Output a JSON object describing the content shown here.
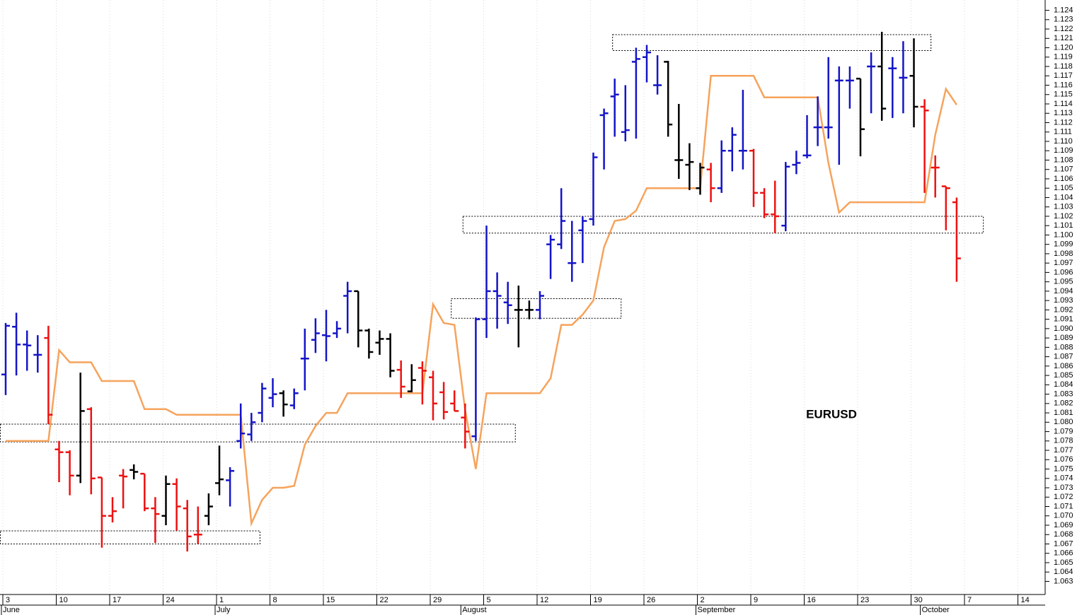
{
  "chart_data": {
    "type": "ohlc",
    "title": "EURUSD",
    "categories": [
      "3",
      null,
      null,
      null,
      null,
      "10",
      null,
      null,
      null,
      null,
      "17",
      null,
      null,
      null,
      null,
      "24",
      null,
      null,
      null,
      null,
      "1",
      null,
      null,
      null,
      null,
      "8",
      null,
      null,
      null,
      null,
      "15",
      null,
      null,
      null,
      null,
      "22",
      null,
      null,
      null,
      null,
      "29",
      null,
      null,
      null,
      null,
      "5",
      null,
      null,
      null,
      null,
      "12",
      null,
      null,
      null,
      null,
      "19",
      null,
      null,
      null,
      null,
      "26",
      null,
      null,
      null,
      null,
      "2",
      null,
      null,
      null,
      null,
      "9",
      null,
      null,
      null,
      null,
      "16",
      null,
      null,
      null,
      null,
      "23",
      null,
      null,
      null,
      null,
      "30",
      null,
      null,
      null,
      null,
      "7",
      null,
      null,
      null,
      null,
      "14",
      null,
      null
    ],
    "months": [
      "June",
      "July",
      "August",
      "September",
      "October"
    ],
    "open": [
      1.0851,
      1.0902,
      1.0883,
      1.0872,
      1.089,
      1.0771,
      1.0768,
      1.0743,
      1.0814,
      1.0741,
      1.07,
      1.0743,
      1.0749,
      1.0745,
      1.0708,
      1.07,
      1.0734,
      1.0708,
      1.068,
      1.07,
      1.0735,
      1.0738,
      1.078,
      1.0787,
      1.081,
      1.0826,
      1.0831,
      1.0818,
      1.0868,
      1.0888,
      1.0893,
      1.0895,
      1.0935,
      1.094,
      1.0898,
      1.0885,
      1.0889,
      1.0856,
      1.0833,
      1.0858,
      1.0848,
      1.0832,
      1.082,
      1.0805,
      1.0785,
      1.091,
      1.094,
      1.0928,
      1.092,
      1.092,
      1.092,
      1.099,
      1.099,
      1.097,
      1.1005,
      1.1017,
      1.1128,
      1.1148,
      1.111,
      1.1185,
      1.119,
      1.116,
      1.1185,
      1.108,
      1.1075,
      1.105,
      1.107,
      1.105,
      1.109,
      1.109,
      1.109,
      1.1045,
      1.1022,
      1.101,
      1.1075,
      1.1085,
      1.1115,
      1.1115,
      1.1165,
      1.1165,
      1.1167,
      1.118,
      1.118,
      1.1178,
      1.1168,
      1.117,
      1.1137,
      1.1072,
      1.1052,
      1.1035,
      null,
      null,
      null,
      null,
      null,
      null,
      null,
      null
    ],
    "high": [
      1.0906,
      1.0917,
      1.0898,
      1.0893,
      1.0903,
      1.078,
      1.077,
      1.0853,
      1.0816,
      1.0741,
      1.072,
      1.075,
      1.0755,
      1.0745,
      1.072,
      1.0743,
      1.074,
      1.0717,
      1.071,
      1.0724,
      1.0775,
      1.0752,
      1.082,
      1.081,
      1.0842,
      1.0847,
      1.0834,
      1.0836,
      1.09,
      1.0911,
      1.092,
      1.0908,
      1.095,
      1.094,
      1.09,
      1.0898,
      1.0895,
      1.0866,
      1.0862,
      1.0865,
      1.0855,
      1.0843,
      1.0834,
      1.082,
      1.0912,
      1.101,
      1.096,
      1.095,
      1.0946,
      1.093,
      1.094,
      1.1,
      1.105,
      1.1015,
      1.102,
      1.1088,
      1.1135,
      1.1167,
      1.116,
      1.12,
      1.1203,
      1.1192,
      1.1186,
      1.114,
      1.1098,
      1.1077,
      1.1077,
      1.1101,
      1.1115,
      1.1155,
      1.1092,
      1.105,
      1.1058,
      1.1078,
      1.109,
      1.1128,
      1.1148,
      1.119,
      1.118,
      1.118,
      1.1167,
      1.1195,
      1.1217,
      1.119,
      1.1207,
      1.121,
      1.1145,
      1.1085,
      1.1052,
      1.104,
      null,
      null,
      null,
      null,
      null,
      null,
      null,
      null
    ],
    "low": [
      1.0829,
      1.085,
      1.0855,
      1.0853,
      1.0798,
      1.0736,
      1.0722,
      1.0735,
      1.0723,
      1.0666,
      1.0693,
      1.0708,
      1.0739,
      1.0705,
      1.0671,
      1.069,
      1.0684,
      1.0662,
      1.067,
      1.069,
      1.0722,
      1.071,
      1.0772,
      1.078,
      1.08,
      1.0816,
      1.0806,
      1.0814,
      1.0834,
      1.0874,
      1.0865,
      1.089,
      1.0895,
      1.088,
      1.0868,
      1.0872,
      1.0848,
      1.0826,
      1.0832,
      1.0819,
      1.0802,
      1.0803,
      1.0812,
      1.0772,
      1.078,
      1.089,
      1.09,
      1.0905,
      1.088,
      1.091,
      1.091,
      1.0953,
      1.0985,
      1.095,
      1.097,
      1.101,
      1.107,
      1.1105,
      1.11,
      1.1103,
      1.1163,
      1.115,
      1.1105,
      1.106,
      1.1048,
      1.1043,
      1.1035,
      1.1045,
      1.1068,
      1.107,
      1.103,
      1.1018,
      1.1002,
      1.1004,
      1.1065,
      1.1082,
      1.1095,
      1.1103,
      1.1075,
      1.1135,
      1.1084,
      1.113,
      1.1122,
      1.1125,
      1.113,
      1.1115,
      1.1045,
      1.104,
      1.1005,
      1.095,
      null,
      null,
      null,
      null,
      null,
      null,
      null,
      null
    ],
    "close": [
      1.0903,
      1.0883,
      1.0882,
      1.0872,
      1.0808,
      1.0768,
      1.0743,
      1.0812,
      1.074,
      1.07,
      1.0705,
      1.0742,
      1.0747,
      1.0708,
      1.0702,
      1.0734,
      1.071,
      1.0678,
      1.068,
      1.071,
      1.0739,
      1.0748,
      1.0788,
      1.08,
      1.0836,
      1.083,
      1.0819,
      1.0831,
      1.0868,
      1.0895,
      1.0892,
      1.09,
      1.094,
      1.0898,
      1.0875,
      1.0889,
      1.0855,
      1.0838,
      1.0845,
      1.0855,
      1.082,
      1.0811,
      1.0812,
      1.079,
      1.091,
      1.094,
      1.0935,
      1.0925,
      1.092,
      1.092,
      1.0935,
      1.0995,
      1.1015,
      1.097,
      1.1015,
      1.1083,
      1.113,
      1.115,
      1.1112,
      1.1188,
      1.1195,
      1.116,
      1.1118,
      1.108,
      1.1078,
      1.1072,
      1.105,
      1.109,
      1.1107,
      1.109,
      1.1045,
      1.1022,
      1.102,
      1.1073,
      1.1077,
      1.1085,
      1.1115,
      1.1115,
      1.1165,
      1.1165,
      1.1113,
      1.118,
      1.1135,
      1.1178,
      1.1168,
      1.1137,
      1.1133,
      1.1072,
      1.105,
      1.0975,
      null,
      null,
      null,
      null,
      null,
      null,
      null,
      null
    ],
    "bar_colors": [
      "#1414c8",
      "#1414c8",
      "#1414c8",
      "#1414c8",
      "#ee1111",
      "#ee1111",
      "#ee1111",
      "#000000",
      "#ee1111",
      "#ee1111",
      "#ee1111",
      "#ee1111",
      "#000000",
      "#ee1111",
      "#ee1111",
      "#000000",
      "#ee1111",
      "#ee1111",
      "#ee1111",
      "#000000",
      "#000000",
      "#1414c8",
      "#1414c8",
      "#1414c8",
      "#1414c8",
      "#1414c8",
      "#000000",
      "#1414c8",
      "#1414c8",
      "#1414c8",
      "#1414c8",
      "#1414c8",
      "#1414c8",
      "#000000",
      "#000000",
      "#000000",
      "#000000",
      "#ee1111",
      "#000000",
      "#ee1111",
      "#ee1111",
      "#ee1111",
      "#ee1111",
      "#ee1111",
      "#1414c8",
      "#1414c8",
      "#1414c8",
      "#1414c8",
      "#000000",
      "#000000",
      "#1414c8",
      "#1414c8",
      "#1414c8",
      "#1414c8",
      "#1414c8",
      "#1414c8",
      "#1414c8",
      "#1414c8",
      "#1414c8",
      "#1414c8",
      "#1414c8",
      "#1414c8",
      "#000000",
      "#000000",
      "#000000",
      "#000000",
      "#ee1111",
      "#1414c8",
      "#1414c8",
      "#1414c8",
      "#ee1111",
      "#ee1111",
      "#ee1111",
      "#1414c8",
      "#1414c8",
      "#1414c8",
      "#1414c8",
      "#1414c8",
      "#1414c8",
      "#1414c8",
      "#000000",
      "#1414c8",
      "#000000",
      "#1414c8",
      "#1414c8",
      "#000000",
      "#ee1111",
      "#ee1111",
      "#ee1111",
      "#ee1111",
      null,
      null,
      null,
      null,
      null,
      null,
      null,
      null
    ],
    "overlay": {
      "color": "#f6a35c",
      "values": [
        1.078,
        1.078,
        1.078,
        1.078,
        1.078,
        1.0877,
        1.0864,
        1.0864,
        1.0864,
        1.0844,
        1.0844,
        1.0844,
        1.0844,
        1.0814,
        1.0814,
        1.0814,
        1.0808,
        1.0808,
        1.0808,
        1.0808,
        1.0808,
        1.0808,
        1.0808,
        1.0692,
        1.0717,
        1.073,
        1.073,
        1.0732,
        1.0776,
        1.0796,
        1.081,
        1.081,
        1.0831,
        1.0831,
        1.0831,
        1.0831,
        1.0831,
        1.0831,
        1.0831,
        1.0831,
        1.0926,
        1.0906,
        1.0904,
        1.0813,
        1.075,
        1.0831,
        1.0831,
        1.0831,
        1.0831,
        1.0831,
        1.0831,
        1.0847,
        1.0904,
        1.0904,
        1.0915,
        1.093,
        1.0987,
        1.1015,
        1.1017,
        1.1026,
        1.105,
        1.105,
        1.105,
        1.105,
        1.105,
        1.105,
        1.117,
        1.117,
        1.117,
        1.117,
        1.117,
        1.1147,
        1.1147,
        1.1147,
        1.1147,
        1.1147,
        1.1147,
        1.1077,
        1.1024,
        1.1035,
        1.1035,
        1.1035,
        1.1035,
        1.1035,
        1.1035,
        1.1035,
        1.1035,
        1.1107,
        1.1156,
        1.1139,
        null,
        null,
        null,
        null,
        null,
        null,
        null,
        null
      ]
    },
    "zones": [
      {
        "from": -0.5,
        "to": 23.8,
        "high": 1.0684,
        "low": 1.067
      },
      {
        "from": -0.5,
        "to": 47.7,
        "high": 1.0798,
        "low": 1.0779
      },
      {
        "from": 41.7,
        "to": 57.6,
        "high": 1.0932,
        "low": 1.0911
      },
      {
        "from": 42.8,
        "to": 91.5,
        "high": 1.102,
        "low": 1.1002
      },
      {
        "from": 56.8,
        "to": 86.6,
        "high": 1.1214,
        "low": 1.1197
      }
    ],
    "ylim": [
      1.0616,
      1.1251
    ],
    "yticks": [
      1.063,
      1.064,
      1.065,
      1.066,
      1.067,
      1.068,
      1.069,
      {
        "value": 1.07,
        "label": "1.070"
      },
      1.071,
      1.072,
      1.073,
      1.074,
      1.075,
      1.076,
      1.077,
      1.078,
      1.079,
      {
        "value": 1.08,
        "label": "1.080"
      },
      1.081,
      1.082,
      1.083,
      1.084,
      1.085,
      1.086,
      1.087,
      1.088,
      1.089,
      {
        "value": 1.09,
        "label": "1.090"
      },
      1.091,
      1.092,
      1.093,
      1.094,
      1.095,
      1.096,
      1.097,
      1.098,
      1.099,
      {
        "value": 1.1,
        "label": "1.100"
      },
      1.101,
      1.102,
      1.103,
      1.104,
      1.105,
      1.106,
      1.107,
      1.108,
      1.109,
      {
        "value": 1.11,
        "label": "1.110"
      },
      1.111,
      1.112,
      1.113,
      1.114,
      1.115,
      1.116,
      1.117,
      1.118,
      1.119,
      {
        "value": 1.12,
        "label": "1.120"
      },
      1.121,
      1.122,
      1.123,
      1.124
    ],
    "grid": true
  }
}
